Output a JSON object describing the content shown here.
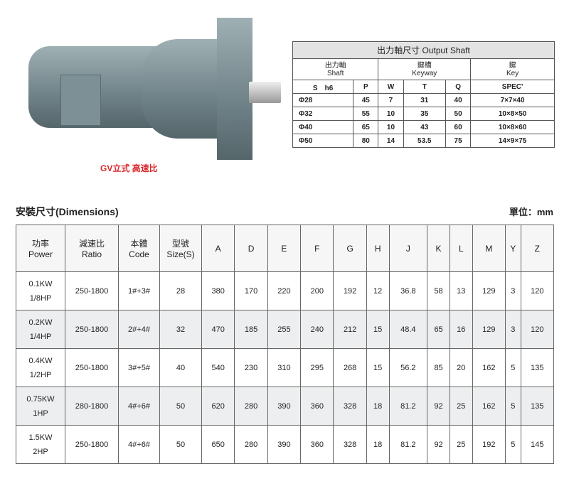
{
  "product": {
    "caption": "GV立式 高速比"
  },
  "output_shaft": {
    "title": "出力軸尺寸 Output Shaft",
    "groups": [
      {
        "zh": "出力軸",
        "en": "Shaft"
      },
      {
        "zh": "鍵槽",
        "en": "Keyway"
      },
      {
        "zh": "鍵",
        "en": "Key"
      }
    ],
    "columns": [
      "S　h6",
      "P",
      "W",
      "T",
      "Q",
      "SPEC'"
    ],
    "rows": [
      [
        "Φ28",
        "45",
        "7",
        "31",
        "40",
        "7×7×40"
      ],
      [
        "Φ32",
        "55",
        "10",
        "35",
        "50",
        "10×8×50"
      ],
      [
        "Φ40",
        "65",
        "10",
        "43",
        "60",
        "10×8×60"
      ],
      [
        "Φ50",
        "80",
        "14",
        "53.5",
        "75",
        "14×9×75"
      ]
    ]
  },
  "dimensions": {
    "title": "安裝尺寸(Dimensions)",
    "unit": "單位：mm",
    "header_pairs": [
      {
        "zh": "功率",
        "en": "Power"
      },
      {
        "zh": "減速比",
        "en": "Ratio"
      },
      {
        "zh": "本體",
        "en": "Code"
      },
      {
        "zh": "型號",
        "en": "Size(S)"
      }
    ],
    "letter_columns": [
      "A",
      "D",
      "E",
      "F",
      "G",
      "H",
      "J",
      "K",
      "L",
      "M",
      "Y",
      "Z"
    ],
    "rows": [
      {
        "kw": "0.1KW",
        "hp": "1/8HP",
        "cells": [
          "250-1800",
          "1#+3#",
          "28",
          "380",
          "170",
          "220",
          "200",
          "192",
          "12",
          "36.8",
          "58",
          "13",
          "129",
          "3",
          "120"
        ]
      },
      {
        "kw": "0.2KW",
        "hp": "1/4HP",
        "cells": [
          "250-1800",
          "2#+4#",
          "32",
          "470",
          "185",
          "255",
          "240",
          "212",
          "15",
          "48.4",
          "65",
          "16",
          "129",
          "3",
          "120"
        ]
      },
      {
        "kw": "0.4KW",
        "hp": "1/2HP",
        "cells": [
          "250-1800",
          "3#+5#",
          "40",
          "540",
          "230",
          "310",
          "295",
          "268",
          "15",
          "56.2",
          "85",
          "20",
          "162",
          "5",
          "135"
        ]
      },
      {
        "kw": "0.75KW",
        "hp": "1HP",
        "cells": [
          "280-1800",
          "4#+6#",
          "50",
          "620",
          "280",
          "390",
          "360",
          "328",
          "18",
          "81.2",
          "92",
          "25",
          "162",
          "5",
          "135"
        ]
      },
      {
        "kw": "1.5KW",
        "hp": "2HP",
        "cells": [
          "250-1800",
          "4#+6#",
          "50",
          "650",
          "280",
          "390",
          "360",
          "328",
          "18",
          "81.2",
          "92",
          "25",
          "192",
          "5",
          "145"
        ]
      }
    ]
  }
}
